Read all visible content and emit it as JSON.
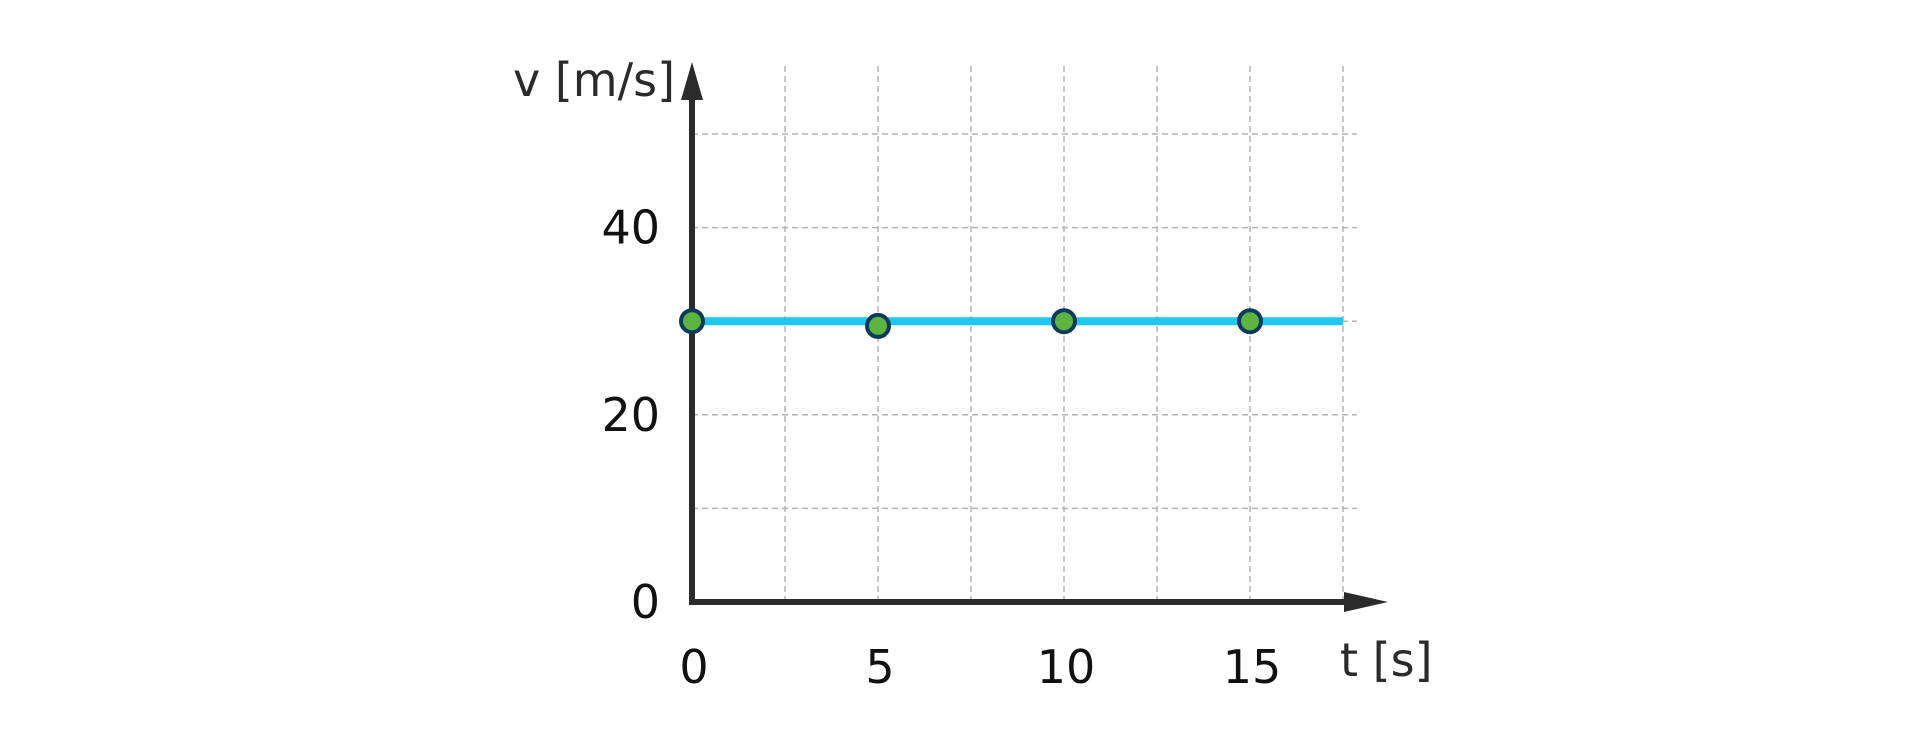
{
  "chart_data": {
    "type": "line",
    "title": "",
    "xlabel": "t [s]",
    "ylabel": "v [m/s]",
    "xlim": [
      0,
      17.5
    ],
    "ylim": [
      0,
      50
    ],
    "x_ticks": [
      0,
      5,
      10,
      15
    ],
    "y_ticks": [
      0,
      20,
      40
    ],
    "x_gridlines": [
      2.5,
      5,
      7.5,
      10,
      12.5,
      15,
      17.5
    ],
    "y_gridlines": [
      10,
      20,
      30,
      40,
      50
    ],
    "grid": true,
    "series": [
      {
        "line": {
          "x": [
            0,
            17.5
          ],
          "y": [
            30,
            30
          ]
        },
        "points": [
          {
            "x": 0,
            "y": 30
          },
          {
            "x": 5,
            "y": 29.5
          },
          {
            "x": 10,
            "y": 30
          },
          {
            "x": 15,
            "y": 30
          }
        ]
      }
    ],
    "colors": {
      "line": "#1ec8f0",
      "marker_fill": "#5db53f",
      "marker_stroke": "#0d3b5c",
      "axis": "#2b2b2b",
      "grid": "#b3b3b3"
    }
  }
}
